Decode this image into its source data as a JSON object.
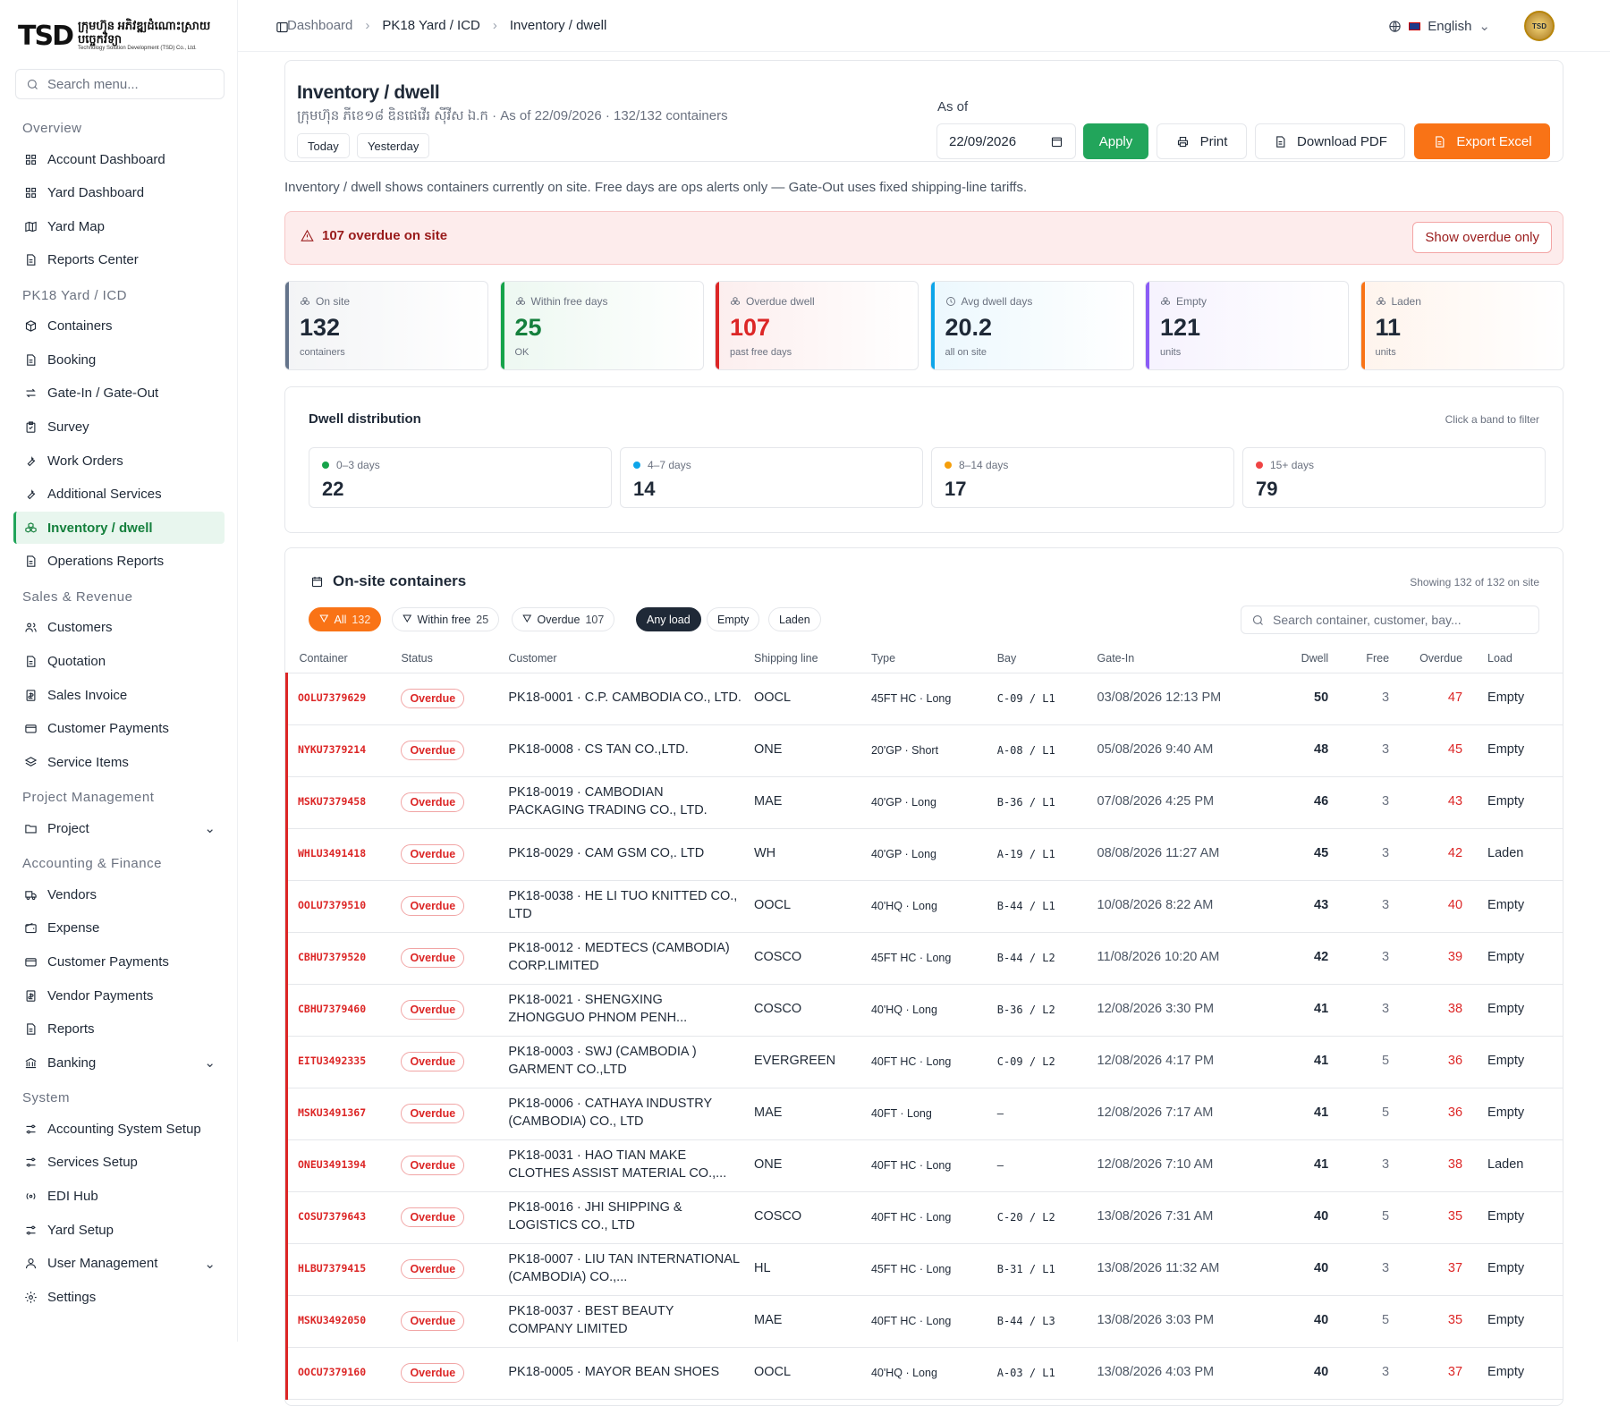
{
  "logo": {
    "mark": "TSD",
    "khmer": "ក្រុមហ៊ុន អភិវឌ្ឍដំណោះស្រាយបច្ចេកវិទ្យា",
    "english": "Technology Solution Development (TSD) Co., Ltd."
  },
  "sidebar": {
    "search_placeholder": "Search menu...",
    "sections": [
      {
        "title": "Overview",
        "items": [
          {
            "label": "Account Dashboard",
            "icon": "grid-icon"
          },
          {
            "label": "Yard Dashboard",
            "icon": "grid-icon"
          },
          {
            "label": "Yard Map",
            "icon": "map-icon"
          },
          {
            "label": "Reports Center",
            "icon": "document-icon"
          }
        ]
      },
      {
        "title": "PK18 Yard / ICD",
        "items": [
          {
            "label": "Containers",
            "icon": "box-icon"
          },
          {
            "label": "Booking",
            "icon": "document-icon"
          },
          {
            "label": "Gate-In / Gate-Out",
            "icon": "swap-icon"
          },
          {
            "label": "Survey",
            "icon": "clipboard-icon"
          },
          {
            "label": "Work Orders",
            "icon": "wrench-icon"
          },
          {
            "label": "Additional Services",
            "icon": "wrench-icon"
          },
          {
            "label": "Inventory / dwell",
            "icon": "boxes-icon",
            "active": true
          },
          {
            "label": "Operations Reports",
            "icon": "document-icon"
          }
        ]
      },
      {
        "title": "Sales & Revenue",
        "items": [
          {
            "label": "Customers",
            "icon": "users-icon"
          },
          {
            "label": "Quotation",
            "icon": "document-icon"
          },
          {
            "label": "Sales Invoice",
            "icon": "invoice-icon"
          },
          {
            "label": "Customer Payments",
            "icon": "card-icon"
          },
          {
            "label": "Service Items",
            "icon": "layers-icon"
          }
        ]
      },
      {
        "title": "Project Management",
        "items": [
          {
            "label": "Project",
            "icon": "folder-icon",
            "expandable": true
          }
        ]
      },
      {
        "title": "Accounting & Finance",
        "items": [
          {
            "label": "Vendors",
            "icon": "truck-icon"
          },
          {
            "label": "Expense",
            "icon": "wallet-icon"
          },
          {
            "label": "Customer Payments",
            "icon": "card-icon"
          },
          {
            "label": "Vendor Payments",
            "icon": "invoice-icon"
          },
          {
            "label": "Reports",
            "icon": "document-icon"
          },
          {
            "label": "Banking",
            "icon": "bank-icon",
            "expandable": true
          }
        ]
      },
      {
        "title": "System",
        "items": [
          {
            "label": "Accounting System Setup",
            "icon": "sliders-icon"
          },
          {
            "label": "Services Setup",
            "icon": "sliders-icon"
          },
          {
            "label": "EDI Hub",
            "icon": "radio-icon"
          },
          {
            "label": "Yard Setup",
            "icon": "sliders-icon"
          },
          {
            "label": "User Management",
            "icon": "user-icon",
            "expandable": true
          },
          {
            "label": "Settings",
            "icon": "gear-icon"
          }
        ]
      }
    ]
  },
  "topbar": {
    "breadcrumbs": [
      "Dashboard",
      "PK18 Yard / ICD",
      "Inventory / dwell"
    ],
    "language": "English",
    "avatar": "TSD"
  },
  "header": {
    "title": "Inventory / dwell",
    "subtitle": "ក្រុមហ៊ុន ភីខេ១៨ ឌិនផេវើរ ស៊ីវីស ឯ.ក · As of 22/09/2026 · 132/132 containers",
    "chip_today": "Today",
    "chip_yesterday": "Yesterday",
    "as_of_label": "As of",
    "as_of_value": "22/09/2026",
    "apply": "Apply",
    "print": "Print",
    "download_pdf": "Download PDF",
    "export_excel": "Export Excel"
  },
  "info_text": "Inventory / dwell shows containers currently on site. Free days are ops alerts only — Gate-Out uses fixed shipping-line tariffs.",
  "alert": {
    "text": "107 overdue on site",
    "button": "Show overdue only"
  },
  "kpis": [
    {
      "label": "On site",
      "value": "132",
      "sub": "containers",
      "color": "#64748b"
    },
    {
      "label": "Within free days",
      "value": "25",
      "sub": "OK",
      "color": "#16a34a"
    },
    {
      "label": "Overdue dwell",
      "value": "107",
      "sub": "past free days",
      "color": "#dc2626"
    },
    {
      "label": "Avg dwell days",
      "value": "20.2",
      "sub": "all on site",
      "color": "#0ea5e9"
    },
    {
      "label": "Empty",
      "value": "121",
      "sub": "units",
      "color": "#8b5cf6"
    },
    {
      "label": "Laden",
      "value": "11",
      "sub": "units",
      "color": "#f97316"
    }
  ],
  "distribution": {
    "title": "Dwell distribution",
    "hint": "Click a band to filter",
    "bands": [
      {
        "label": "0–3 days",
        "value": "22",
        "color": "#16a34a"
      },
      {
        "label": "4–7 days",
        "value": "14",
        "color": "#0ea5e9"
      },
      {
        "label": "8–14 days",
        "value": "17",
        "color": "#f59e0b"
      },
      {
        "label": "15+ days",
        "value": "79",
        "color": "#ef4444"
      }
    ]
  },
  "table": {
    "title": "On-site containers",
    "showing": "Showing 132 of 132 on site",
    "filters": {
      "all": "All",
      "all_count": "132",
      "within": "Within free",
      "within_count": "25",
      "overdue": "Overdue",
      "overdue_count": "107",
      "any_load": "Any load",
      "empty": "Empty",
      "laden": "Laden"
    },
    "search_placeholder": "Search container, customer, bay...",
    "columns": [
      "Container",
      "Status",
      "Customer",
      "Shipping line",
      "Type",
      "Bay",
      "Gate-In",
      "Dwell",
      "Free",
      "Overdue",
      "Load"
    ],
    "rows": [
      [
        "OOLU7379629",
        "Overdue",
        "PK18-0001 · C.P. CAMBODIA CO., LTD.",
        "OOCL",
        "45FT HC · Long",
        "C-09 / L1",
        "03/08/2026 12:13 PM",
        "50",
        "3",
        "47",
        "Empty"
      ],
      [
        "NYKU7379214",
        "Overdue",
        "PK18-0008 · CS TAN CO.,LTD.",
        "ONE",
        "20'GP · Short",
        "A-08 / L1",
        "05/08/2026 9:40 AM",
        "48",
        "3",
        "45",
        "Empty"
      ],
      [
        "MSKU7379458",
        "Overdue",
        "PK18-0019 · CAMBODIAN PACKAGING TRADING CO., LTD.",
        "MAE",
        "40'GP · Long",
        "B-36 / L1",
        "07/08/2026 4:25 PM",
        "46",
        "3",
        "43",
        "Empty"
      ],
      [
        "WHLU3491418",
        "Overdue",
        "PK18-0029 · CAM GSM CO,. LTD",
        "WH",
        "40'GP · Long",
        "A-19 / L1",
        "08/08/2026 11:27 AM",
        "45",
        "3",
        "42",
        "Laden"
      ],
      [
        "OOLU7379510",
        "Overdue",
        "PK18-0038 · HE LI TUO KNITTED CO., LTD",
        "OOCL",
        "40'HQ · Long",
        "B-44 / L1",
        "10/08/2026 8:22 AM",
        "43",
        "3",
        "40",
        "Empty"
      ],
      [
        "CBHU7379520",
        "Overdue",
        "PK18-0012 · MEDTECS (CAMBODIA) CORP.LIMITED",
        "COSCO",
        "45FT HC · Long",
        "B-44 / L2",
        "11/08/2026 10:20 AM",
        "42",
        "3",
        "39",
        "Empty"
      ],
      [
        "CBHU7379460",
        "Overdue",
        "PK18-0021 · SHENGXING ZHONGGUO PHNOM PENH...",
        "COSCO",
        "40'HQ · Long",
        "B-36 / L2",
        "12/08/2026 3:30 PM",
        "41",
        "3",
        "38",
        "Empty"
      ],
      [
        "EITU3492335",
        "Overdue",
        "PK18-0003 · SWJ (CAMBODIA ) GARMENT CO.,LTD",
        "EVERGREEN",
        "40FT HC · Long",
        "C-09 / L2",
        "12/08/2026 4:17 PM",
        "41",
        "5",
        "36",
        "Empty"
      ],
      [
        "MSKU3491367",
        "Overdue",
        "PK18-0006 · CATHAYA INDUSTRY (CAMBODIA) CO., LTD",
        "MAE",
        "40FT · Long",
        "—",
        "12/08/2026 7:17 AM",
        "41",
        "5",
        "36",
        "Empty"
      ],
      [
        "ONEU3491394",
        "Overdue",
        "PK18-0031 · HAO TIAN MAKE CLOTHES ASSIST MATERIAL CO.,...",
        "ONE",
        "40FT HC · Long",
        "—",
        "12/08/2026 7:10 AM",
        "41",
        "3",
        "38",
        "Laden"
      ],
      [
        "COSU7379643",
        "Overdue",
        "PK18-0016 · JHI SHIPPING & LOGISTICS CO., LTD",
        "COSCO",
        "40FT HC · Long",
        "C-20 / L2",
        "13/08/2026 7:31 AM",
        "40",
        "5",
        "35",
        "Empty"
      ],
      [
        "HLBU7379415",
        "Overdue",
        "PK18-0007 · LIU TAN INTERNATIONAL (CAMBODIA) CO.,...",
        "HL",
        "45FT HC · Long",
        "B-31 / L1",
        "13/08/2026 11:32 AM",
        "40",
        "3",
        "37",
        "Empty"
      ],
      [
        "MSKU3492050",
        "Overdue",
        "PK18-0037 · BEST BEAUTY COMPANY LIMITED",
        "MAE",
        "40FT HC · Long",
        "B-44 / L3",
        "13/08/2026 3:03 PM",
        "40",
        "5",
        "35",
        "Empty"
      ],
      [
        "OOCU7379160",
        "Overdue",
        "PK18-0005 · MAYOR BEAN SHOES",
        "OOCL",
        "40'HQ · Long",
        "A-03 / L1",
        "13/08/2026 4:03 PM",
        "40",
        "3",
        "37",
        "Empty"
      ]
    ]
  }
}
